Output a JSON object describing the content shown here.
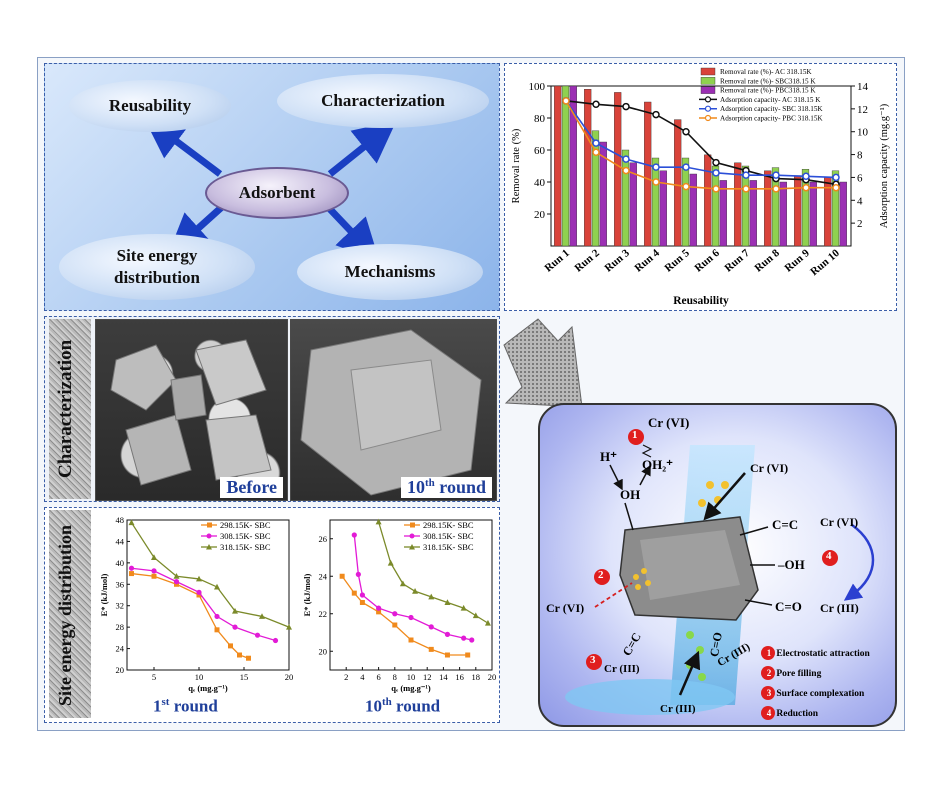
{
  "concept": {
    "center": "Adsorbent",
    "reusability": "Reusability",
    "characterization": "Characterization",
    "site_energy": "Site energy distribution",
    "mechanisms": "Mechanisms"
  },
  "characterization": {
    "side_label": "Characterization",
    "before": "Before",
    "after_prefix": "10",
    "after_sup": "th",
    "after_suffix": " round"
  },
  "site_energy": {
    "side_label": "Site energy distribution",
    "round1_prefix": "1",
    "round1_sup": "st",
    "round1_suffix": " round",
    "round10_prefix": "10",
    "round10_sup": "th",
    "round10_suffix": " round"
  },
  "chart_data": [
    {
      "type": "bar",
      "xlabel": "Reusability",
      "ylabel": "Removal rate (%)",
      "y2label": "Adsorption capacity (mg.g⁻¹)",
      "ylim": [
        0,
        100
      ],
      "y2lim": [
        0,
        14
      ],
      "yticks": [
        20,
        40,
        60,
        80,
        100
      ],
      "y2ticks": [
        2,
        4,
        6,
        8,
        10,
        12,
        14
      ],
      "categories": [
        "Run 1",
        "Run 2",
        "Run 3",
        "Run 4",
        "Run 5",
        "Run 6",
        "Run 7",
        "Run 8",
        "Run 9",
        "Run 10"
      ],
      "legend_position": "top-right",
      "series": [
        {
          "name": "Removal rate (%)- AC 318.15K",
          "kind": "bar",
          "axis": "left",
          "color": "#d9433a",
          "values": [
            100,
            98,
            96,
            90,
            79,
            57,
            52,
            47,
            44,
            43
          ]
        },
        {
          "name": "Removal rate (%)- SBC318.15 K",
          "kind": "bar",
          "axis": "left",
          "color": "#8fd14f",
          "values": [
            100,
            72,
            60,
            55,
            55,
            50,
            50,
            49,
            48,
            47
          ]
        },
        {
          "name": "Removal rate (%)- PBC318.15 K",
          "kind": "bar",
          "axis": "left",
          "color": "#9b2fb3",
          "values": [
            100,
            65,
            52,
            47,
            45,
            41,
            41,
            40,
            40,
            40
          ]
        },
        {
          "name": "Adsorption capacity- AC 318.15 K",
          "kind": "line",
          "axis": "right",
          "color": "#111111",
          "values": [
            12.7,
            12.4,
            12.2,
            11.5,
            10.0,
            7.3,
            6.6,
            5.9,
            5.8,
            5.4
          ]
        },
        {
          "name": "Adsorption capacity- SBC 318.15K",
          "kind": "line",
          "axis": "right",
          "color": "#2b4fd8",
          "values": [
            12.7,
            9.0,
            7.6,
            6.9,
            6.9,
            6.4,
            6.2,
            6.2,
            6.1,
            6.0
          ]
        },
        {
          "name": "Adsorption capacity- PBC 318.15K",
          "kind": "line",
          "axis": "right",
          "color": "#f08a1c",
          "values": [
            12.7,
            8.2,
            6.6,
            5.6,
            5.2,
            5.0,
            5.0,
            5.0,
            5.1,
            5.1
          ]
        }
      ]
    },
    {
      "type": "line",
      "xlabel": "qₑ (mg.g⁻¹)",
      "ylabel": "E* (kJ/mol)",
      "xlim": [
        2,
        20
      ],
      "ylim": [
        20,
        48
      ],
      "xticks": [
        5,
        10,
        15,
        20
      ],
      "yticks": [
        20,
        24,
        28,
        32,
        36,
        40,
        44,
        48
      ],
      "legend_position": "top-right",
      "series": [
        {
          "name": "298.15K- SBC",
          "color": "#f08a1c",
          "marker": "square",
          "x": [
            2.5,
            5,
            7.5,
            10,
            12,
            13.5,
            14.5,
            15.5
          ],
          "y": [
            38,
            37.5,
            36,
            34,
            27.5,
            24.5,
            22.8,
            22.2
          ]
        },
        {
          "name": "308.15K- SBC",
          "color": "#e21bd6",
          "marker": "circle",
          "x": [
            2.5,
            5,
            7.5,
            10,
            12,
            14,
            16.5,
            18.5
          ],
          "y": [
            39,
            38.5,
            36.5,
            34.5,
            30,
            28,
            26.5,
            25.5
          ]
        },
        {
          "name": "318.15K- SBC",
          "color": "#7b8a2a",
          "marker": "triangle",
          "x": [
            2.5,
            5,
            7.5,
            10,
            12,
            14,
            17,
            20
          ],
          "y": [
            47.5,
            41,
            37.5,
            37,
            35.5,
            31,
            30,
            28
          ]
        }
      ]
    },
    {
      "type": "line",
      "xlabel": "qₑ (mg.g⁻¹)",
      "ylabel": "E* (kJ/mol)",
      "xlim": [
        0,
        20
      ],
      "ylim": [
        19,
        27
      ],
      "xticks": [
        2,
        4,
        6,
        8,
        10,
        12,
        14,
        16,
        18,
        20
      ],
      "yticks": [
        20,
        22,
        24,
        26
      ],
      "legend_position": "top-right",
      "series": [
        {
          "name": "298.15K- SBC",
          "color": "#f08a1c",
          "marker": "square",
          "x": [
            1.5,
            3,
            4,
            6,
            8,
            10,
            12.5,
            14.5,
            17
          ],
          "y": [
            24,
            23.1,
            22.6,
            22.1,
            21.4,
            20.6,
            20.1,
            19.8,
            19.8
          ]
        },
        {
          "name": "308.15K- SBC",
          "color": "#e21bd6",
          "marker": "circle",
          "x": [
            3,
            3.5,
            4,
            6,
            8,
            10,
            12.5,
            14.5,
            16.5,
            17.5
          ],
          "y": [
            26.2,
            24.1,
            23,
            22.3,
            22,
            21.8,
            21.3,
            20.9,
            20.7,
            20.6
          ]
        },
        {
          "name": "318.15K- SBC",
          "color": "#7b8a2a",
          "marker": "triangle",
          "x": [
            6,
            7.5,
            9,
            10.5,
            12.5,
            14.5,
            16.5,
            18,
            19.5
          ],
          "y": [
            26.9,
            24.7,
            23.6,
            23.2,
            22.9,
            22.6,
            22.3,
            21.9,
            21.5
          ]
        }
      ]
    }
  ],
  "mechanism": {
    "cr6_top": "Cr (VI)",
    "h_plus": "H⁺",
    "oh": "OH",
    "oh2_plus": "OH₂⁺",
    "cr6_right": "Cr (VI)",
    "cc_top": "C=C",
    "oh_group": "–OH",
    "co_group": "C=O",
    "cr6_reduce": "Cr (VI)",
    "cr3_reduce": "Cr (III)",
    "cr6_left": "Cr (VI)",
    "cc_bottom": "C=C",
    "co_bottom": "C=O",
    "cr3_a": "Cr (III)",
    "cr3_b": "Cr (III)",
    "cr3_c": "Cr (III)",
    "num1": "1",
    "num2": "2",
    "num3": "3",
    "num4": "4",
    "legend": [
      {
        "num": "1",
        "label": "Electrostatic attraction"
      },
      {
        "num": "2",
        "label": "Pore filling"
      },
      {
        "num": "3",
        "label": "Surface complexation"
      },
      {
        "num": "4",
        "label": "Reduction"
      }
    ]
  }
}
